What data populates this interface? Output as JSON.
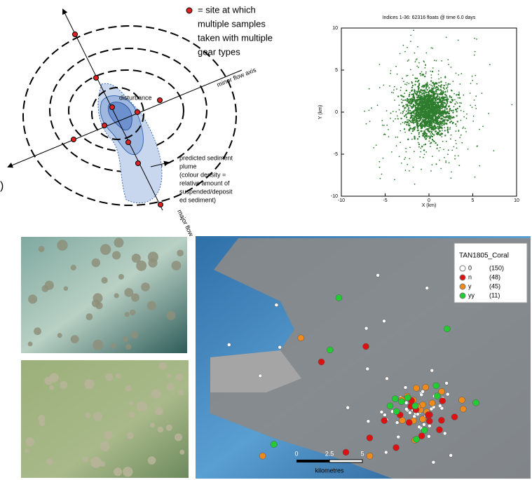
{
  "diagram": {
    "legend": [
      "= site at which",
      "multiple samples",
      "taken with multiple",
      "gear types"
    ],
    "minor_axis": "minor flow axis",
    "major_axis": "major flow",
    "disturbance": "disturbance",
    "plume_note": [
      "predicted sediment",
      "plume",
      "(colour density =",
      "relative amount of",
      "suspended/deposit",
      "ed sediment)"
    ],
    "edge": ")"
  },
  "scatter": {
    "title": "Indices 1-36:  62316 floats @ time 6.0 days",
    "x_label": "X (km)",
    "y_label": "Y (km)",
    "xticks": [
      -10,
      -5,
      0,
      5,
      10
    ],
    "yticks": [
      10,
      5,
      0,
      -5,
      -10
    ]
  },
  "map": {
    "legend_title": "TAN1805_Coral",
    "legend": [
      {
        "label": "0",
        "count": "(150)"
      },
      {
        "label": "n",
        "count": "(48)"
      },
      {
        "label": "y",
        "count": "(45)"
      },
      {
        "label": "yy",
        "count": "(11)"
      }
    ],
    "scale": [
      "0",
      "2.5",
      "5"
    ],
    "scale_unit": "kilometres"
  }
}
